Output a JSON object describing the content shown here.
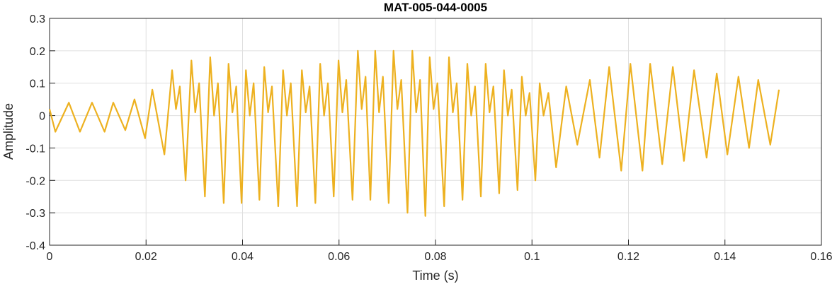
{
  "chart_data": {
    "type": "line",
    "title": "MAT-005-044-0005",
    "xlabel": "Time (s)",
    "ylabel": "Amplitude",
    "x": [
      0,
      0.0012,
      0.004,
      0.0063,
      0.0088,
      0.0114,
      0.0132,
      0.0157,
      0.0176,
      0.0198,
      0.0213,
      0.0238,
      0.0254,
      0.0262,
      0.027,
      0.0282,
      0.0294,
      0.0302,
      0.031,
      0.0322,
      0.0333,
      0.0341,
      0.0349,
      0.0361,
      0.0371,
      0.0379,
      0.0387,
      0.0398,
      0.0407,
      0.0415,
      0.0423,
      0.0435,
      0.0445,
      0.0453,
      0.0461,
      0.0474,
      0.0484,
      0.0492,
      0.05,
      0.0513,
      0.0523,
      0.0531,
      0.0539,
      0.0551,
      0.0561,
      0.0569,
      0.0577,
      0.0589,
      0.0599,
      0.0607,
      0.0615,
      0.0628,
      0.0639,
      0.0647,
      0.0655,
      0.0665,
      0.0675,
      0.0683,
      0.0691,
      0.0703,
      0.0713,
      0.0721,
      0.0729,
      0.0742,
      0.0752,
      0.076,
      0.0768,
      0.0779,
      0.0788,
      0.0796,
      0.0804,
      0.0818,
      0.0828,
      0.0836,
      0.0844,
      0.0856,
      0.0866,
      0.0874,
      0.0882,
      0.0894,
      0.0904,
      0.0912,
      0.092,
      0.0932,
      0.0942,
      0.095,
      0.0958,
      0.097,
      0.0979,
      0.0987,
      0.0995,
      0.1007,
      0.1016,
      0.1024,
      0.1034,
      0.105,
      0.1071,
      0.1094,
      0.112,
      0.114,
      0.116,
      0.1185,
      0.1204,
      0.1229,
      0.1245,
      0.127,
      0.1292,
      0.1315,
      0.1336,
      0.1362,
      0.1383,
      0.1405,
      0.1428,
      0.145,
      0.1469,
      0.1494,
      0.1512
    ],
    "series": [
      {
        "name": "Amplitude",
        "color": "#EDB120",
        "values": [
          0.02,
          -0.05,
          0.04,
          -0.05,
          0.04,
          -0.05,
          0.04,
          -0.045,
          0.05,
          -0.07,
          0.08,
          -0.12,
          0.14,
          0.02,
          0.09,
          -0.2,
          0.17,
          0.01,
          0.1,
          -0.25,
          0.18,
          0.0,
          0.1,
          -0.27,
          0.16,
          0.01,
          0.09,
          -0.27,
          0.14,
          0.0,
          0.1,
          -0.26,
          0.15,
          0.01,
          0.09,
          -0.28,
          0.14,
          0.0,
          0.1,
          -0.28,
          0.14,
          0.01,
          0.09,
          -0.27,
          0.16,
          0.0,
          0.1,
          -0.25,
          0.17,
          0.01,
          0.11,
          -0.26,
          0.2,
          0.02,
          0.12,
          -0.26,
          0.2,
          0.01,
          0.12,
          -0.27,
          0.2,
          0.02,
          0.11,
          -0.3,
          0.2,
          0.01,
          0.11,
          -0.31,
          0.18,
          0.02,
          0.1,
          -0.28,
          0.18,
          0.01,
          0.1,
          -0.26,
          0.16,
          0.0,
          0.09,
          -0.25,
          0.16,
          0.01,
          0.09,
          -0.24,
          0.14,
          0.0,
          0.08,
          -0.23,
          0.12,
          0.0,
          0.07,
          -0.2,
          0.1,
          0.0,
          0.07,
          -0.16,
          0.09,
          -0.09,
          0.11,
          -0.13,
          0.15,
          -0.17,
          0.16,
          -0.17,
          0.16,
          -0.15,
          0.15,
          -0.14,
          0.14,
          -0.13,
          0.13,
          -0.12,
          0.12,
          -0.1,
          0.11,
          -0.09,
          0.08
        ]
      }
    ],
    "xlim": [
      0,
      0.16
    ],
    "xticks": [
      0,
      0.02,
      0.04,
      0.06,
      0.08,
      0.1,
      0.12,
      0.14,
      0.16
    ],
    "ylim": [
      -0.4,
      0.3
    ],
    "yticks": [
      -0.4,
      -0.3,
      -0.2,
      -0.1,
      0,
      0.1,
      0.2,
      0.3
    ],
    "grid": true
  }
}
